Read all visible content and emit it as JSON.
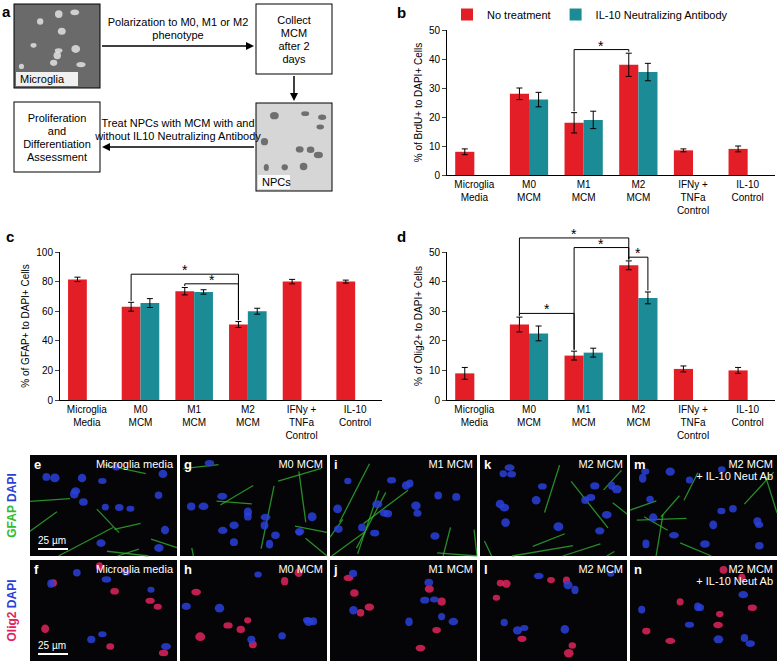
{
  "chart_data": [
    {
      "type": "bar",
      "panel": "b",
      "ylabel": "% of BrdU+ to DAPI+ Cells",
      "categories": [
        "Microglia Media",
        "M0 MCM",
        "M1 MCM",
        "M2 MCM",
        "IFNy + TNFa Control",
        "IL-10 Control"
      ],
      "series": [
        {
          "name": "No treatment",
          "color": "#e41e26",
          "values": [
            8,
            28,
            18,
            38,
            8.5,
            9
          ],
          "errors": [
            1,
            2,
            3.5,
            4,
            0.5,
            1
          ]
        },
        {
          "name": "IL-10 Neutralizing Antibody",
          "color": "#1b8b96",
          "values": [
            null,
            26,
            19,
            35.5,
            null,
            null
          ],
          "errors": [
            null,
            2.5,
            3,
            3,
            null,
            null
          ]
        }
      ],
      "ylim": [
        0,
        50
      ],
      "yticks": [
        0,
        10,
        20,
        30,
        40,
        50
      ],
      "grid": false,
      "legend": "top",
      "significance": [
        {
          "from": {
            "category": "M1 MCM",
            "series": "No treatment"
          },
          "to": {
            "category": "M2 MCM",
            "series": "No treatment"
          },
          "label": "*"
        }
      ]
    },
    {
      "type": "bar",
      "panel": "c",
      "ylabel": "% of GFAP+ to DAPI+ Cells",
      "categories": [
        "Microglia Media",
        "M0 MCM",
        "M1 MCM",
        "M2 MCM",
        "IFNy + TNFa Control",
        "IL-10 Control"
      ],
      "series": [
        {
          "name": "No treatment",
          "color": "#e41e26",
          "values": [
            81.5,
            63,
            73.5,
            51,
            80,
            80
          ],
          "errors": [
            1.5,
            3,
            2.5,
            2,
            1.5,
            1
          ]
        },
        {
          "name": "IL-10 Neutralizing Antibody",
          "color": "#1b8b96",
          "values": [
            null,
            65.5,
            73,
            60,
            null,
            null
          ],
          "errors": [
            null,
            3,
            1.5,
            2,
            null,
            null
          ]
        }
      ],
      "ylim": [
        0,
        100
      ],
      "yticks": [
        0,
        20,
        40,
        60,
        80,
        100
      ],
      "grid": false,
      "significance": [
        {
          "from": {
            "category": "M1 MCM",
            "series": "No treatment"
          },
          "to": {
            "category": "M2 MCM",
            "series": "No treatment"
          },
          "label": "*"
        },
        {
          "from": {
            "category": "M0 MCM",
            "series": "No treatment"
          },
          "to": {
            "category": "M2 MCM",
            "series": "No treatment"
          },
          "label": "*"
        }
      ]
    },
    {
      "type": "bar",
      "panel": "d",
      "ylabel": "% of Olig2+ to DAPI+ Cells",
      "categories": [
        "Microglia Media",
        "M0 MCM",
        "M1 MCM",
        "M2 MCM",
        "IFNy + TNFa Control",
        "IL-10 Control"
      ],
      "series": [
        {
          "name": "No treatment",
          "color": "#e41e26",
          "values": [
            9,
            25.5,
            15,
            45.5,
            10.5,
            10
          ],
          "errors": [
            2,
            2.5,
            1.5,
            1.5,
            1,
            1
          ]
        },
        {
          "name": "IL-10 Neutralizing Antibody",
          "color": "#1b8b96",
          "values": [
            null,
            22.5,
            16,
            34.5,
            null,
            null
          ],
          "errors": [
            null,
            2.5,
            1.5,
            2,
            null,
            null
          ]
        }
      ],
      "ylim": [
        0,
        50
      ],
      "yticks": [
        0,
        10,
        20,
        30,
        40,
        50
      ],
      "grid": false,
      "significance": [
        {
          "from": {
            "category": "M0 MCM",
            "series": "No treatment"
          },
          "to": {
            "category": "M1 MCM",
            "series": "No treatment"
          },
          "label": "*"
        },
        {
          "from": {
            "category": "M2 MCM",
            "series": "No treatment"
          },
          "to": {
            "category": "M2 MCM",
            "series": "IL-10 Neutralizing Antibody"
          },
          "label": "*"
        },
        {
          "from": {
            "category": "M1 MCM",
            "series": "No treatment"
          },
          "to": {
            "category": "M2 MCM",
            "series": "No treatment"
          },
          "label": "*"
        },
        {
          "from": {
            "category": "M0 MCM",
            "series": "No treatment"
          },
          "to": {
            "category": "M2 MCM",
            "series": "No treatment"
          },
          "label": "*"
        }
      ]
    }
  ],
  "diagram": {
    "panel": "a",
    "nodes": [
      {
        "label": "Microglia",
        "image": true
      },
      {
        "label": "Collect MCM after 2 days",
        "image": false
      },
      {
        "label": "NPCs",
        "image": true
      },
      {
        "label": "Proliferation and Differentiation Assessment",
        "image": false
      }
    ],
    "edges": [
      {
        "from": 0,
        "to": 1,
        "label": "Polarization to M0, M1 or M2 phenotype"
      },
      {
        "from": 1,
        "to": 2
      },
      {
        "from": 2,
        "to": 3,
        "label": "Treat NPCs with MCM with and without IL10 Neutralizing Antibody"
      }
    ]
  },
  "micrographs": {
    "rows": [
      {
        "stains": [
          {
            "text": "GFAP",
            "color": "#33bb33"
          },
          {
            "text": "DAPI",
            "color": "#2a3fd8"
          }
        ],
        "scale_bar": "25 µm",
        "panels": [
          {
            "letter": "e",
            "label": "Microglia media"
          },
          {
            "letter": "g",
            "label": "M0 MCM"
          },
          {
            "letter": "i",
            "label": "M1 MCM"
          },
          {
            "letter": "k",
            "label": "M2 MCM"
          },
          {
            "letter": "m",
            "label": "M2 MCM + IL-10 Neut Ab"
          }
        ]
      },
      {
        "stains": [
          {
            "text": "Olig2",
            "color": "#e0245a"
          },
          {
            "text": "DAPI",
            "color": "#2a3fd8"
          }
        ],
        "scale_bar": "25 µm",
        "panels": [
          {
            "letter": "f",
            "label": "Microglia media"
          },
          {
            "letter": "h",
            "label": "M0 MCM"
          },
          {
            "letter": "j",
            "label": "M1 MCM"
          },
          {
            "letter": "l",
            "label": "M2 MCM"
          },
          {
            "letter": "n",
            "label": "M2 MCM + IL-10 Neut Ab"
          }
        ]
      }
    ]
  }
}
